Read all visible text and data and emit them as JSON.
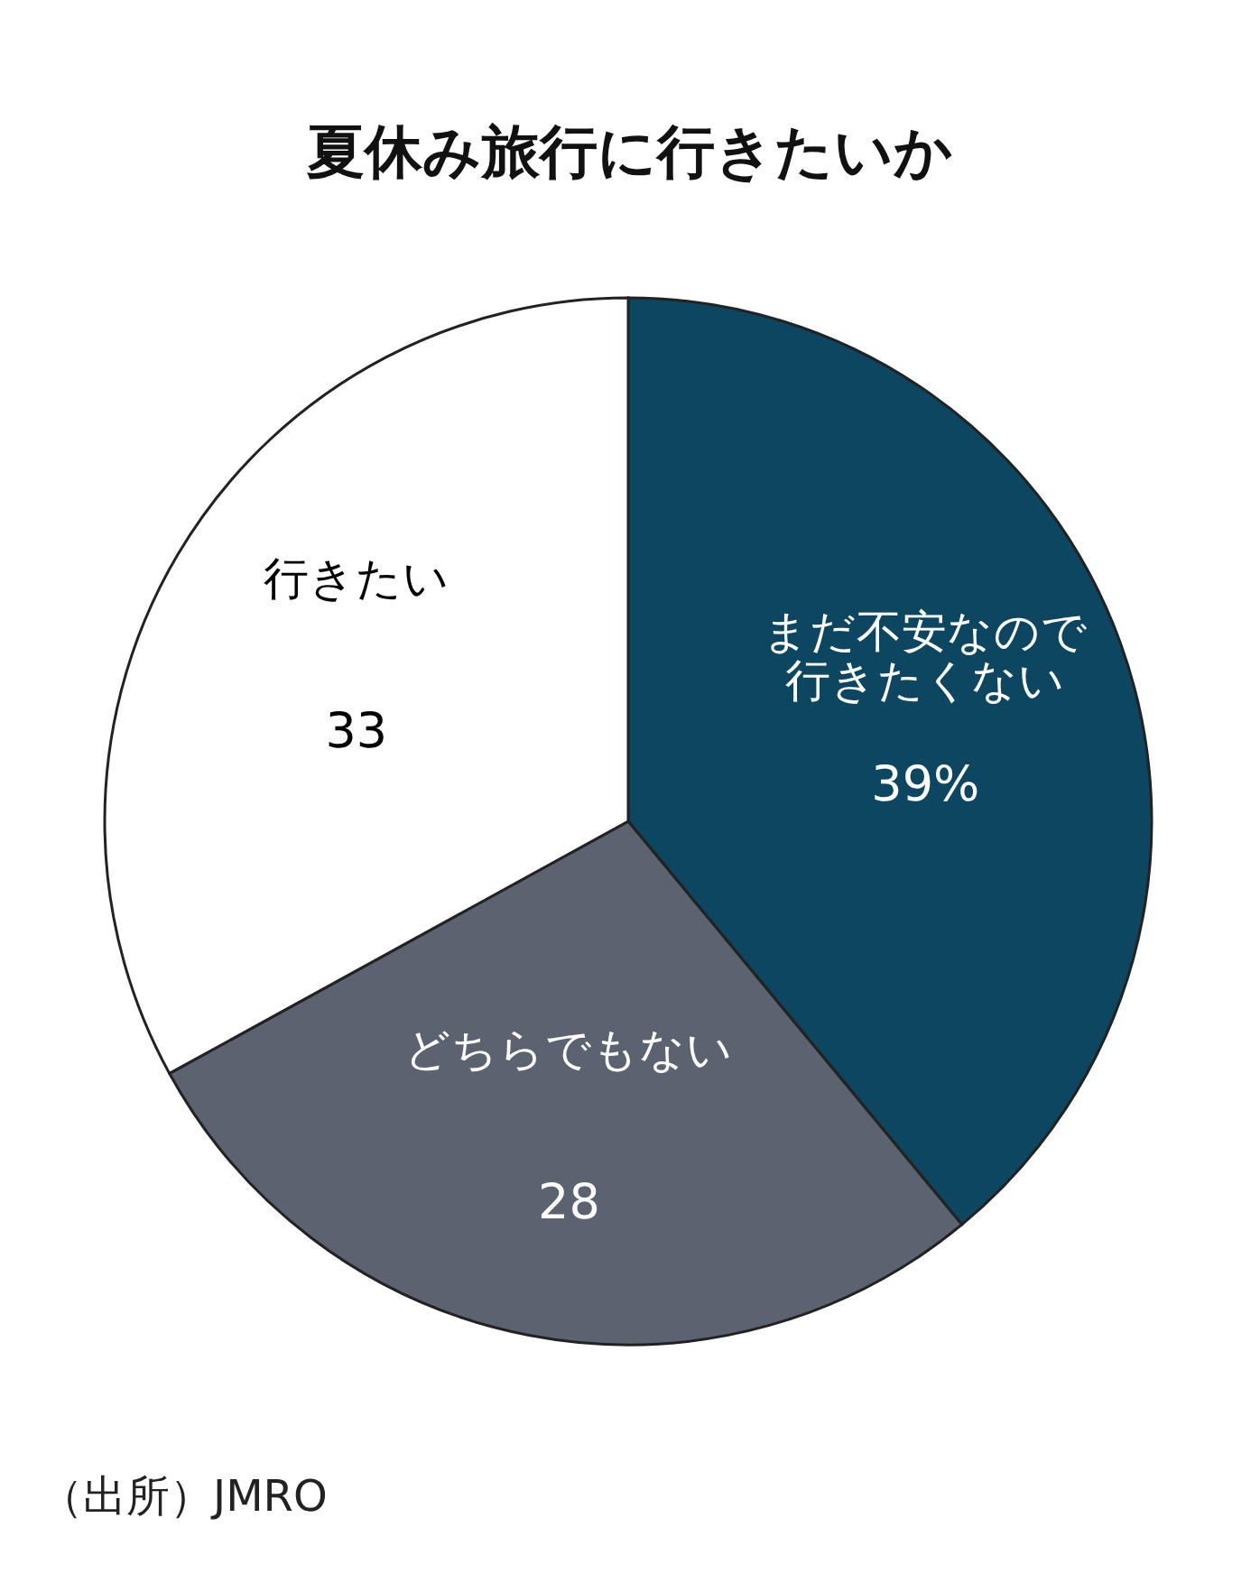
{
  "chart_data": {
    "type": "pie",
    "title": "夏休み旅行に行きたいか",
    "categories": [
      "まだ不安なので行きたくない",
      "どちらでもない",
      "行きたい"
    ],
    "values": [
      39,
      28,
      33
    ],
    "colors": [
      "#0d4660",
      "#5b6270",
      "#ffffff"
    ],
    "value_labels": [
      "39%",
      "28",
      "33"
    ],
    "annotations": [
      "（出所）JMRO"
    ]
  }
}
